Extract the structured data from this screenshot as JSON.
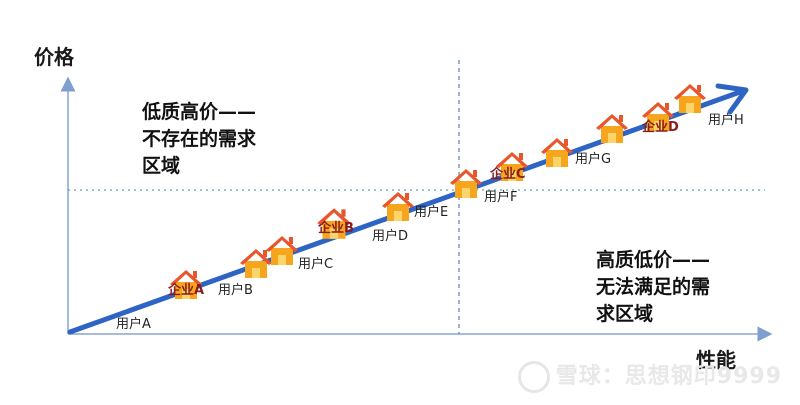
{
  "axes": {
    "y_label": "价格",
    "x_label": "性能"
  },
  "regions": {
    "top_left": "低质高价——\n不存在的需求\n区域",
    "bottom_right": "高质低价——\n无法满足的需\n求区域"
  },
  "users": [
    "用户A",
    "用户B",
    "用户C",
    "用户D",
    "用户E",
    "用户F",
    "用户G",
    "用户H"
  ],
  "companies": [
    "企业A",
    "企业B",
    "企业C",
    "企业D"
  ],
  "watermark": "雪球：思想钢印9999",
  "colors": {
    "axis": "#4e81bd",
    "arrow": "#2e64c4",
    "house_roof": "#e8562c",
    "house_body": "#f6a51c",
    "company_text": "#8b1a1a"
  }
}
